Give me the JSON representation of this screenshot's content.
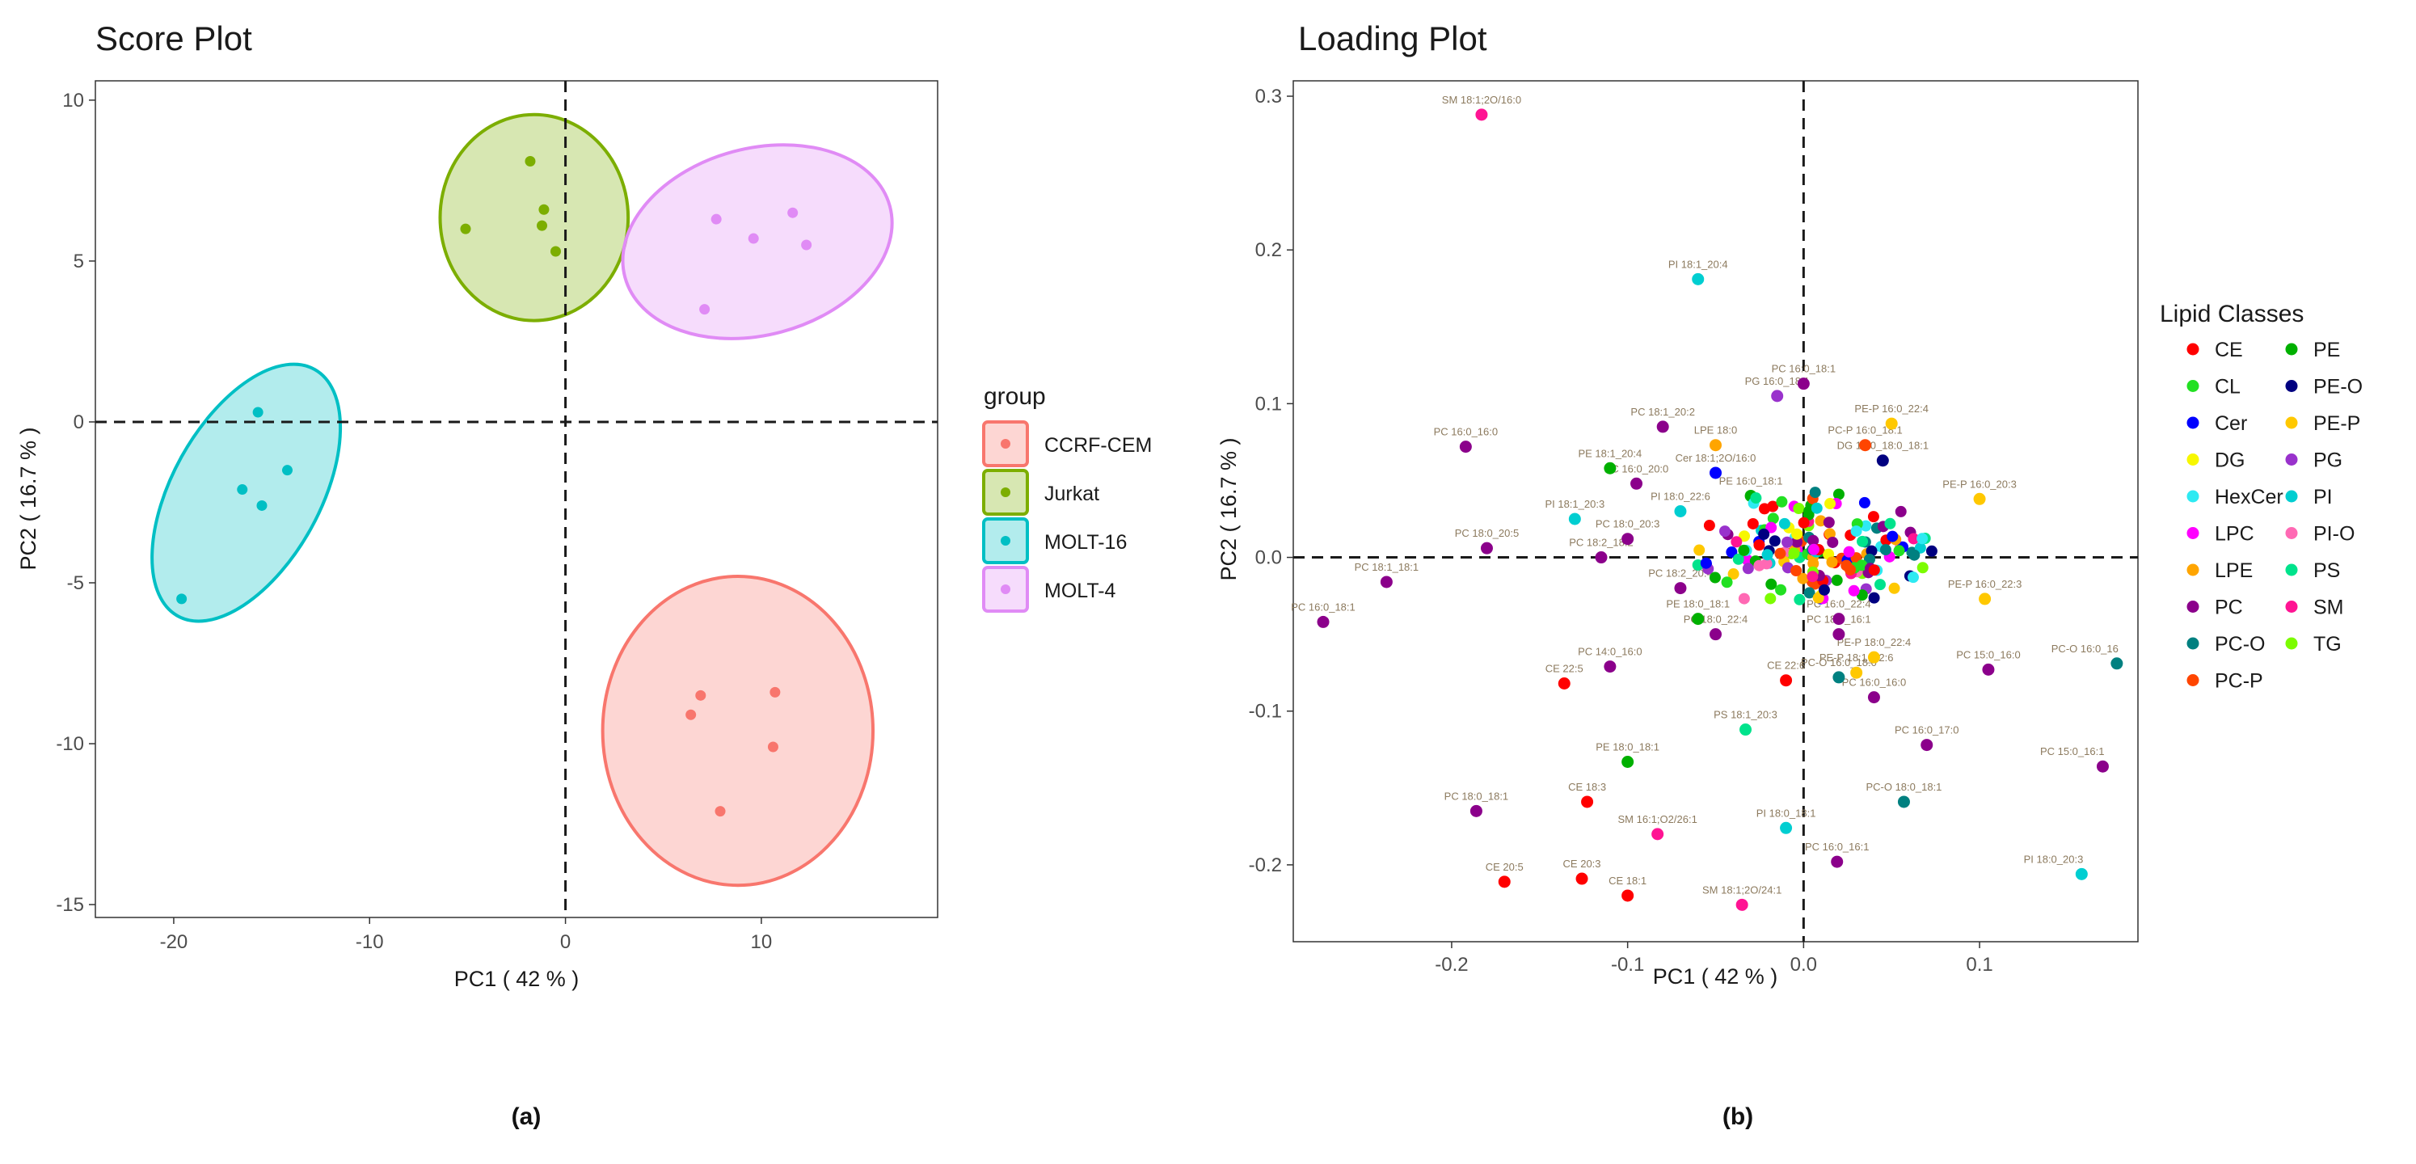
{
  "chart_data": [
    {
      "type": "scatter",
      "title": "Score Plot",
      "xlabel": "PC1 ( 42 % )",
      "ylabel": "PC2 ( 16.7 % )",
      "xlim": [
        -24,
        19
      ],
      "ylim": [
        -15.4,
        10.6
      ],
      "xticks": [
        -20,
        -10,
        0,
        10
      ],
      "yticks": [
        -15,
        -10,
        -5,
        0,
        5,
        10
      ],
      "tick_labels_x": [
        "-20",
        "-10",
        "0",
        "10"
      ],
      "tick_labels_y": [
        "-15",
        "-10",
        "-5",
        "0",
        "5",
        "10"
      ],
      "reference_lines": {
        "x": 0,
        "y": 0,
        "style": "dashed"
      },
      "legend": {
        "title": "group",
        "position": "right"
      },
      "series": [
        {
          "name": "CCRF-CEM",
          "color": "#F8766D",
          "points": [
            [
              6.9,
              -8.5
            ],
            [
              6.4,
              -9.1
            ],
            [
              10.7,
              -8.4
            ],
            [
              10.6,
              -10.1
            ],
            [
              7.9,
              -12.1
            ]
          ],
          "ellipse": {
            "center": [
              8.8,
              -9.6
            ],
            "semi_axis_x": 6.9,
            "semi_axis_y": 4.8,
            "angle_deg": 0
          }
        },
        {
          "name": "Jurkat",
          "color": "#7CAE00",
          "points": [
            [
              -1.8,
              8.1
            ],
            [
              -1.1,
              6.6
            ],
            [
              -1.2,
              6.1
            ],
            [
              -0.5,
              5.3
            ],
            [
              -5.1,
              6.0
            ]
          ],
          "ellipse": {
            "center": [
              -1.6,
              6.35
            ],
            "semi_axis_x": 4.8,
            "semi_axis_y": 3.2,
            "angle_deg": 0
          }
        },
        {
          "name": "MOLT-16",
          "color": "#00BFC4",
          "points": [
            [
              -15.7,
              0.3
            ],
            [
              -14.2,
              -1.5
            ],
            [
              -16.5,
              -2.1
            ],
            [
              -15.5,
              -2.6
            ],
            [
              -19.6,
              -5.5
            ]
          ],
          "ellipse": {
            "center": [
              -16.3,
              -2.2
            ],
            "semi_axis_x": 7.2,
            "semi_axis_y": 2.3,
            "angle_deg": 61
          }
        },
        {
          "name": "MOLT-4",
          "color": "#E08BF5",
          "points": [
            [
              7.7,
              6.3
            ],
            [
              9.6,
              5.7
            ],
            [
              11.6,
              6.5
            ],
            [
              12.3,
              5.5
            ],
            [
              7.1,
              3.5
            ]
          ],
          "ellipse": {
            "center": [
              9.8,
              5.6
            ],
            "semi_axis_x": 7.0,
            "semi_axis_y": 2.9,
            "angle_deg": 15
          }
        }
      ],
      "caption": "(a)"
    },
    {
      "type": "scatter",
      "title": "Loading Plot",
      "xlabel": "PC1 ( 42 % )",
      "ylabel": "PC2 ( 16.7 % )",
      "xlim": [
        -0.29,
        0.19
      ],
      "ylim": [
        -0.25,
        0.31
      ],
      "xticks": [
        -0.2,
        -0.1,
        0.0,
        0.1
      ],
      "yticks": [
        -0.2,
        -0.1,
        0.0,
        0.1,
        0.2,
        0.3
      ],
      "tick_labels_x": [
        "-0.2",
        "-0.1",
        "0.0",
        "0.1"
      ],
      "tick_labels_y": [
        "-0.2",
        "-0.1",
        "0.0",
        "0.1",
        "0.2",
        "0.3"
      ],
      "reference_lines": {
        "x": 0,
        "y": 0,
        "style": "dashed"
      },
      "legend": {
        "title": "Lipid Classes",
        "position": "right",
        "columns": 2
      },
      "classes": [
        {
          "name": "CE",
          "color": "#FF0000"
        },
        {
          "name": "CL",
          "color": "#22E022"
        },
        {
          "name": "Cer",
          "color": "#0000FF"
        },
        {
          "name": "DG",
          "color": "#F7F700"
        },
        {
          "name": "HexCer",
          "color": "#2EEAF2"
        },
        {
          "name": "LPC",
          "color": "#FF00FF"
        },
        {
          "name": "LPE",
          "color": "#FFA500"
        },
        {
          "name": "PC",
          "color": "#8B008B"
        },
        {
          "name": "PC-O",
          "color": "#008080"
        },
        {
          "name": "PC-P",
          "color": "#FF4500"
        },
        {
          "name": "PE",
          "color": "#00B000"
        },
        {
          "name": "PE-O",
          "color": "#000080"
        },
        {
          "name": "PE-P",
          "color": "#FFC800"
        },
        {
          "name": "PG",
          "color": "#9932CC"
        },
        {
          "name": "PI",
          "color": "#00CED1"
        },
        {
          "name": "PI-O",
          "color": "#FF69B4"
        },
        {
          "name": "PS",
          "color": "#00E38C"
        },
        {
          "name": "SM",
          "color": "#FF1493"
        },
        {
          "name": "TG",
          "color": "#7CFC00"
        }
      ],
      "points": [
        {
          "label": "SM 18:1;2O/16:0",
          "class": "SM",
          "x": -0.183,
          "y": 0.288
        },
        {
          "label": "PI 18:1_20:4",
          "class": "PI",
          "x": -0.06,
          "y": 0.181
        },
        {
          "label": "PC 16:0_18:1",
          "class": "PC",
          "x": 0.0,
          "y": 0.113
        },
        {
          "label": "PG 16:0_18:1",
          "class": "PG",
          "x": -0.015,
          "y": 0.105
        },
        {
          "label": "PE-P 16:0_22:4",
          "class": "PE-P",
          "x": 0.05,
          "y": 0.087
        },
        {
          "label": "PC-P 16:0_18:1",
          "class": "PC-P",
          "x": 0.035,
          "y": 0.073
        },
        {
          "label": "PC 18:1_20:2",
          "class": "PC",
          "x": -0.08,
          "y": 0.085
        },
        {
          "label": "LPE 18:0",
          "class": "LPE",
          "x": -0.05,
          "y": 0.073
        },
        {
          "label": "PE-P 16:0_20:3",
          "class": "PE-P",
          "x": 0.1,
          "y": 0.038
        },
        {
          "label": "PC 16:0_16:0",
          "class": "PC",
          "x": -0.192,
          "y": 0.072
        },
        {
          "label": "PE 18:1_20:4",
          "class": "PE",
          "x": -0.11,
          "y": 0.058
        },
        {
          "label": "PC 16:0_20:0",
          "class": "PC",
          "x": -0.095,
          "y": 0.048
        },
        {
          "label": "PI 18:1_20:3",
          "class": "PI",
          "x": -0.13,
          "y": 0.025
        },
        {
          "label": "PC 18:0_20:5",
          "class": "PC",
          "x": -0.18,
          "y": 0.006
        },
        {
          "label": "PC 18:0_20:3",
          "class": "PC",
          "x": -0.1,
          "y": 0.012
        },
        {
          "label": "PC 18:1_18:1",
          "class": "PC",
          "x": -0.237,
          "y": -0.016
        },
        {
          "label": "PC 16:0_18:1",
          "class": "PC",
          "x": -0.273,
          "y": -0.042
        },
        {
          "label": "PE-P 16:0_22:3",
          "class": "PE-P",
          "x": 0.103,
          "y": -0.027
        },
        {
          "label": "PC 15:0_16:0",
          "class": "PC",
          "x": 0.105,
          "y": -0.073
        },
        {
          "label": "PC-O 16:0_16",
          "class": "PC-O",
          "x": 0.178,
          "y": -0.069
        },
        {
          "label": "PC 14:0_16:0",
          "class": "PC",
          "x": -0.11,
          "y": -0.071
        },
        {
          "label": "CE 22:5",
          "class": "CE",
          "x": -0.136,
          "y": -0.082
        },
        {
          "label": "PS 18:1_20:3",
          "class": "PS",
          "x": -0.033,
          "y": -0.112
        },
        {
          "label": "PE 18:0_18:1",
          "class": "PE",
          "x": -0.1,
          "y": -0.133
        },
        {
          "label": "PC 15:0_16:1",
          "class": "PC",
          "x": 0.17,
          "y": -0.136
        },
        {
          "label": "PC 18:0_18:1",
          "class": "PC",
          "x": -0.186,
          "y": -0.165
        },
        {
          "label": "CE 18:3",
          "class": "CE",
          "x": -0.123,
          "y": -0.159
        },
        {
          "label": "SM 16:1;O2/26:1",
          "class": "SM",
          "x": -0.083,
          "y": -0.18
        },
        {
          "label": "PI 18:0_18:1",
          "class": "PI",
          "x": -0.01,
          "y": -0.176
        },
        {
          "label": "PC-O 18:0_18:1",
          "class": "PC-O",
          "x": 0.057,
          "y": -0.159
        },
        {
          "label": "PC 16:0_16:1",
          "class": "PC",
          "x": 0.019,
          "y": -0.198
        },
        {
          "label": "PI 18:0_20:3",
          "class": "PI",
          "x": 0.158,
          "y": -0.206
        },
        {
          "label": "CE 20:5",
          "class": "CE",
          "x": -0.17,
          "y": -0.211
        },
        {
          "label": "CE 20:3",
          "class": "CE",
          "x": -0.126,
          "y": -0.209
        },
        {
          "label": "CE 18:1",
          "class": "CE",
          "x": -0.1,
          "y": -0.22
        },
        {
          "label": "SM 18:1;2O/24:1",
          "class": "SM",
          "x": -0.035,
          "y": -0.226
        },
        {
          "label": "PC 16:0_17:0",
          "class": "PC",
          "x": 0.07,
          "y": -0.122
        },
        {
          "label": "CE 22:6",
          "class": "CE",
          "x": -0.01,
          "y": -0.08
        },
        {
          "label": "PE-P 18:0_22:4",
          "class": "PE-P",
          "x": 0.04,
          "y": -0.065
        },
        {
          "label": "PE-P 18:1_22:6",
          "class": "PE-P",
          "x": 0.03,
          "y": -0.075
        },
        {
          "label": "PC-O 16:0_18:0",
          "class": "PC-O",
          "x": 0.02,
          "y": -0.078
        },
        {
          "label": "PC 16:0_16:0",
          "class": "PC",
          "x": 0.04,
          "y": -0.091
        },
        {
          "label": "PC 18:0_16:1",
          "class": "PC",
          "x": 0.02,
          "y": -0.05
        },
        {
          "label": "DG 16:0_18:0_18:1",
          "class": "PE-O",
          "x": 0.045,
          "y": 0.063
        },
        {
          "label": "Cer 18:1;2O/16:0",
          "class": "Cer",
          "x": -0.05,
          "y": 0.055
        },
        {
          "label": "PC 18:2_18:2",
          "class": "PC",
          "x": -0.115,
          "y": 0.0
        },
        {
          "label": "PI 18:0_22:6",
          "class": "PI",
          "x": -0.07,
          "y": 0.03
        },
        {
          "label": "PE 18:0_18:1",
          "class": "PE",
          "x": -0.06,
          "y": -0.04
        },
        {
          "label": "PC 18:2_20:4",
          "class": "PC",
          "x": -0.07,
          "y": -0.02
        },
        {
          "label": "PC 16:0_22:4",
          "class": "PC",
          "x": 0.02,
          "y": -0.04
        },
        {
          "label": "PC 18:0_22:4",
          "class": "PC",
          "x": -0.05,
          "y": -0.05
        },
        {
          "label": "PE 16:0_18:1",
          "class": "PE",
          "x": -0.03,
          "y": 0.04
        }
      ],
      "caption": "(b)"
    }
  ]
}
